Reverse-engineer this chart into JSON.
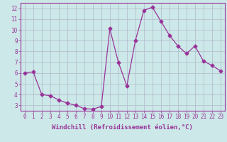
{
  "x": [
    0,
    1,
    2,
    3,
    4,
    5,
    6,
    7,
    8,
    9,
    10,
    11,
    12,
    13,
    14,
    15,
    16,
    17,
    18,
    19,
    20,
    21,
    22,
    23
  ],
  "y": [
    6.0,
    6.1,
    4.0,
    3.9,
    3.5,
    3.2,
    3.0,
    2.7,
    2.65,
    2.9,
    10.1,
    7.0,
    4.8,
    9.0,
    11.8,
    12.1,
    10.8,
    9.5,
    8.5,
    7.8,
    8.5,
    7.1,
    6.7,
    6.2
  ],
  "line_color": "#993399",
  "marker": "D",
  "markersize": 2.5,
  "linewidth": 0.9,
  "bg_color": "#cce8e8",
  "grid_color": "#b0b8cc",
  "xlabel": "Windchill (Refroidissement éolien,°C)",
  "xlabel_fontsize": 6.5,
  "tick_fontsize": 5.5,
  "xlim": [
    -0.5,
    23.5
  ],
  "ylim": [
    2.5,
    12.5
  ],
  "yticks": [
    3,
    4,
    5,
    6,
    7,
    8,
    9,
    10,
    11,
    12
  ],
  "xticks": [
    0,
    1,
    2,
    3,
    4,
    5,
    6,
    7,
    8,
    9,
    10,
    11,
    12,
    13,
    14,
    15,
    16,
    17,
    18,
    19,
    20,
    21,
    22,
    23
  ]
}
